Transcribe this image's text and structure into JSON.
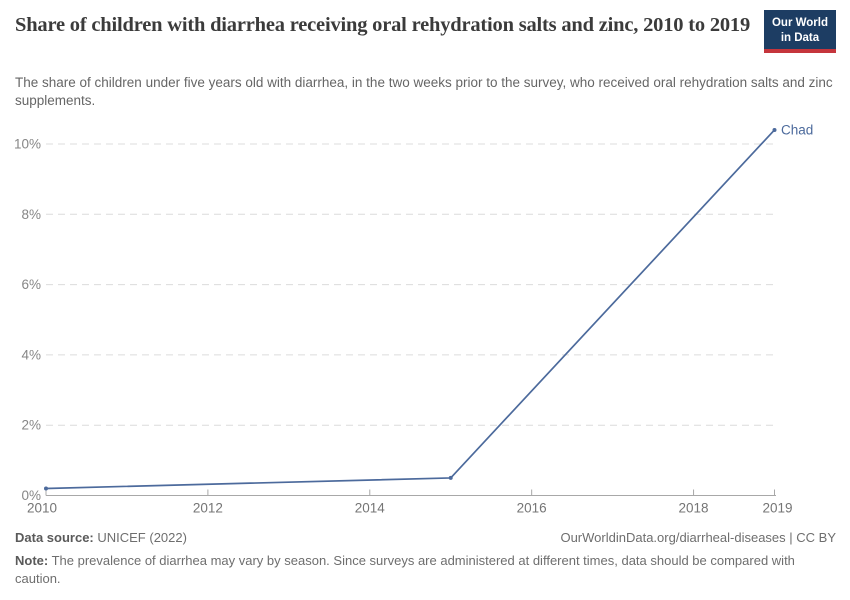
{
  "header": {
    "title": "Share of children with diarrhea receiving oral rehydration salts and zinc, 2010 to 2019",
    "subtitle": "The share of children under five years old with diarrhea, in the two weeks prior to the survey, who received oral rehydration salts and zinc supplements.",
    "logo": {
      "line1": "Our World",
      "line2": "in Data",
      "bg_color": "#1d3d63",
      "accent_color": "#c5353c"
    }
  },
  "chart_data": {
    "type": "line",
    "title": "Share of children with diarrhea receiving oral rehydration salts and zinc, 2010 to 2019",
    "xlabel": "",
    "ylabel": "",
    "x_ticks": [
      2010,
      2012,
      2014,
      2016,
      2018,
      2019
    ],
    "y_ticks": [
      0,
      2,
      4,
      6,
      8,
      10
    ],
    "y_tick_suffix": "%",
    "xlim": [
      2010,
      2019
    ],
    "ylim": [
      0,
      10.4
    ],
    "grid": "horizontal-dashed",
    "legend_position": "end-of-line-label",
    "series": [
      {
        "name": "Chad",
        "color": "#4c6a9c",
        "points": [
          {
            "x": 2010,
            "y": 0.2
          },
          {
            "x": 2015,
            "y": 0.5
          },
          {
            "x": 2019,
            "y": 10.4
          }
        ]
      }
    ]
  },
  "footer": {
    "datasource_label": "Data source:",
    "datasource_value": " UNICEF (2022)",
    "attribution": "OurWorldinData.org/diarrheal-diseases | CC BY",
    "note_label": "Note:",
    "note_text": " The prevalence of diarrhea may vary by season. Since surveys are administered at different times, data should be compared with caution."
  }
}
